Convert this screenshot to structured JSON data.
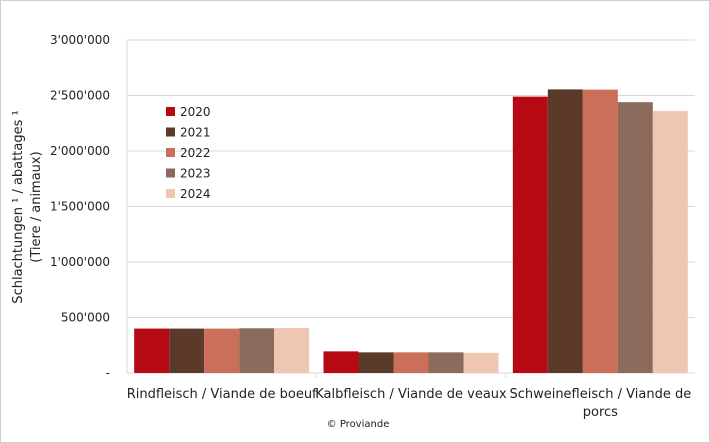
{
  "chart_data": {
    "type": "bar",
    "title": "",
    "ylabel_line1": "Schlachtungen ¹ / abattages ¹",
    "ylabel_line2": "(Tiere / animaux)",
    "xlabel": "",
    "ylim": [
      0,
      3000000
    ],
    "yticks": [
      0,
      500000,
      1000000,
      1500000,
      2000000,
      2500000,
      3000000
    ],
    "ytick_labels": [
      "-",
      "500'000",
      "1'000'000",
      "1'500'000",
      "2'000'000",
      "2'500'000",
      "3'000'000"
    ],
    "categories": [
      [
        "Rindfleisch / Viande de boeuf"
      ],
      [
        "Kalbfleisch / Viande de veaux"
      ],
      [
        "Schweinefleisch / Viande de",
        "porcs"
      ]
    ],
    "series": [
      {
        "name": "2020",
        "color": "#b50a14",
        "values": [
          400000,
          195000,
          2490000
        ]
      },
      {
        "name": "2021",
        "color": "#5c3a2a",
        "values": [
          400000,
          186000,
          2555000
        ]
      },
      {
        "name": "2022",
        "color": "#cc6f5a",
        "values": [
          400000,
          186000,
          2553000
        ]
      },
      {
        "name": "2023",
        "color": "#8a6b5c",
        "values": [
          403000,
          186000,
          2440000
        ]
      },
      {
        "name": "2024",
        "color": "#efc6b2",
        "values": [
          405000,
          182000,
          2360000
        ]
      }
    ],
    "grid": true,
    "legend_position": "top-left",
    "footer": "© Proviande"
  }
}
